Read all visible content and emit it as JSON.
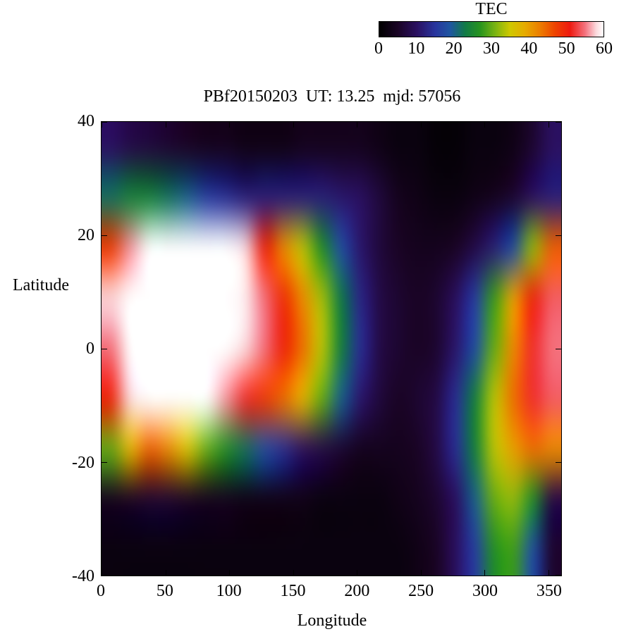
{
  "title": "PBf20150203  UT: 13.25  mjd: 57056",
  "colorbar": {
    "label": "TEC",
    "tick_labels": [
      "0",
      "10",
      "20",
      "30",
      "40",
      "50",
      "60"
    ],
    "min": 0,
    "max": 60
  },
  "axes": {
    "xlabel": "Longitude",
    "ylabel": "Latitude",
    "x_tick_labels": [
      "0",
      "50",
      "100",
      "150",
      "200",
      "250",
      "300",
      "350"
    ],
    "x_tick_values": [
      0,
      50,
      100,
      150,
      200,
      250,
      300,
      350
    ],
    "y_tick_labels": [
      "40",
      "20",
      "0",
      "-20",
      "-40"
    ],
    "y_tick_values": [
      40,
      20,
      0,
      -20,
      -40
    ],
    "xlim": [
      0,
      360
    ],
    "ylim": [
      -40,
      40
    ]
  },
  "chart_data": {
    "type": "heatmap",
    "title": "PBf20150203  UT: 13.25  mjd: 57056",
    "xlabel": "Longitude",
    "ylabel": "Latitude",
    "colorbar_label": "TEC",
    "xlim": [
      0,
      360
    ],
    "ylim": [
      -40,
      40
    ],
    "zlim": [
      0,
      60
    ],
    "grid": false,
    "x": [
      0,
      15,
      30,
      45,
      60,
      75,
      90,
      105,
      120,
      135,
      150,
      165,
      180,
      195,
      210,
      225,
      240,
      255,
      270,
      285,
      300,
      315,
      330,
      345
    ],
    "y": [
      40,
      30,
      20,
      10,
      0,
      -10,
      -20,
      -30,
      -40
    ],
    "values": [
      [
        10,
        8,
        7,
        6,
        5,
        4,
        4,
        3,
        3,
        3,
        4,
        4,
        4,
        4,
        3,
        2,
        2,
        1,
        1,
        2,
        2,
        3,
        6,
        10
      ],
      [
        22,
        24,
        24,
        22,
        20,
        16,
        14,
        12,
        12,
        12,
        12,
        12,
        11,
        10,
        7,
        4,
        3,
        2,
        2,
        3,
        4,
        6,
        10,
        12
      ],
      [
        48,
        56,
        62,
        65,
        65,
        63,
        60,
        58,
        50,
        42,
        34,
        26,
        18,
        11,
        7,
        5,
        4,
        4,
        5,
        8,
        12,
        18,
        32,
        45
      ],
      [
        58,
        63,
        66,
        67,
        66,
        65,
        62,
        59,
        55,
        49,
        42,
        33,
        23,
        13,
        8,
        6,
        5,
        6,
        10,
        16,
        28,
        40,
        50,
        54
      ],
      [
        55,
        62,
        66,
        67,
        66,
        64,
        62,
        58,
        55,
        50,
        44,
        34,
        24,
        14,
        8,
        6,
        5,
        6,
        11,
        18,
        30,
        42,
        52,
        55
      ],
      [
        50,
        58,
        63,
        64,
        62,
        60,
        56,
        52,
        48,
        44,
        38,
        30,
        20,
        11,
        7,
        5,
        6,
        8,
        14,
        24,
        34,
        44,
        52,
        54
      ],
      [
        30,
        38,
        45,
        42,
        36,
        30,
        26,
        22,
        18,
        14,
        10,
        8,
        6,
        4,
        4,
        4,
        5,
        8,
        14,
        24,
        34,
        40,
        44,
        42
      ],
      [
        4,
        5,
        6,
        6,
        5,
        4,
        4,
        3,
        3,
        3,
        3,
        2,
        2,
        2,
        2,
        3,
        4,
        6,
        10,
        20,
        30,
        32,
        26,
        8
      ],
      [
        2,
        2,
        2,
        2,
        2,
        2,
        2,
        2,
        2,
        2,
        2,
        2,
        2,
        2,
        2,
        2,
        3,
        5,
        10,
        16,
        26,
        28,
        18,
        6
      ]
    ],
    "colormap": [
      {
        "v": 0,
        "c": "#000000"
      },
      {
        "v": 5,
        "c": "#1a0425"
      },
      {
        "v": 10,
        "c": "#2a1060"
      },
      {
        "v": 15,
        "c": "#28359e"
      },
      {
        "v": 19,
        "c": "#1e56a0"
      },
      {
        "v": 23,
        "c": "#117a46"
      },
      {
        "v": 27,
        "c": "#28941e"
      },
      {
        "v": 31,
        "c": "#7ab412"
      },
      {
        "v": 35,
        "c": "#cfc800"
      },
      {
        "v": 39,
        "c": "#e6ab00"
      },
      {
        "v": 43,
        "c": "#ec7d00"
      },
      {
        "v": 47,
        "c": "#ee4400"
      },
      {
        "v": 51,
        "c": "#ee1a10"
      },
      {
        "v": 55,
        "c": "#f4707c"
      },
      {
        "v": 58,
        "c": "#fbd8dc"
      },
      {
        "v": 60,
        "c": "#ffffff"
      }
    ]
  }
}
